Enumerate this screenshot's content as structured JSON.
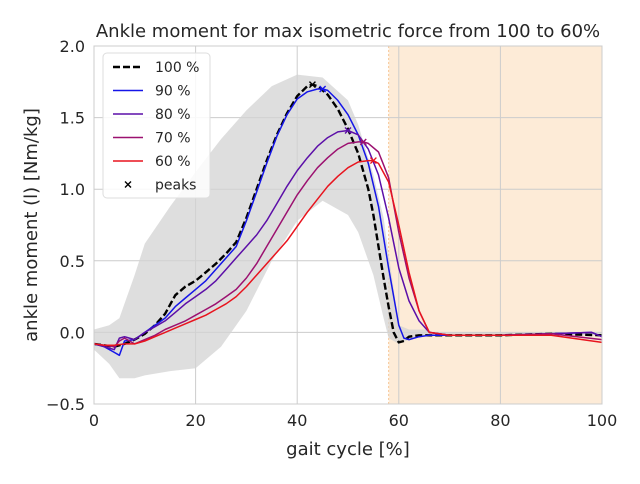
{
  "chart_data": {
    "type": "line",
    "title": "Ankle moment for max isometric force from 100 to 60%",
    "xlabel": "gait cycle [%]",
    "ylabel": "ankle moment (l) [Nm/kg]",
    "xlim": [
      0,
      100
    ],
    "ylim": [
      -0.5,
      2.0
    ],
    "xticks": [
      0,
      20,
      40,
      60,
      80,
      100
    ],
    "yticks": [
      -0.5,
      0.0,
      0.5,
      1.0,
      1.5,
      2.0
    ],
    "xtick_labels": [
      "0",
      "20",
      "40",
      "60",
      "80",
      "100"
    ],
    "ytick_labels": [
      "−0.5",
      "0.0",
      "0.5",
      "1.0",
      "1.5",
      "2.0"
    ],
    "grid": true,
    "legend_position": "top-left",
    "swing_region": {
      "x_start": 58,
      "x_end": 100,
      "color": "#fdebd7"
    },
    "reference_band": {
      "color": "#d3d3d3",
      "x": [
        0,
        3,
        5,
        8,
        10,
        15,
        20,
        25,
        30,
        35,
        40,
        45,
        50,
        52,
        55,
        57,
        58,
        60,
        62,
        65,
        67,
        70,
        80,
        90,
        100
      ],
      "upper": [
        0.02,
        0.05,
        0.1,
        0.4,
        0.62,
        0.88,
        1.12,
        1.35,
        1.55,
        1.72,
        1.8,
        1.78,
        1.62,
        1.45,
        1.1,
        0.8,
        0.55,
        0.05,
        0.02,
        0.02,
        0.0,
        0.0,
        0.0,
        0.0,
        0.0
      ],
      "lower": [
        -0.12,
        -0.22,
        -0.32,
        -0.32,
        -0.3,
        -0.27,
        -0.25,
        -0.1,
        0.15,
        0.5,
        0.78,
        0.92,
        0.82,
        0.7,
        0.4,
        0.1,
        -0.04,
        -0.08,
        -0.05,
        -0.02,
        -0.02,
        -0.02,
        -0.02,
        -0.02,
        -0.02
      ]
    },
    "series": [
      {
        "name": "100 %",
        "color": "#000000",
        "dashed": true,
        "x": [
          0,
          2,
          4,
          6,
          8,
          10,
          12,
          14,
          16,
          18,
          20,
          22,
          24,
          26,
          28,
          30,
          32,
          34,
          36,
          38,
          40,
          42,
          43,
          44,
          46,
          48,
          50,
          52,
          54,
          55,
          56,
          57,
          58,
          59,
          60,
          61,
          62,
          64,
          66,
          70,
          80,
          90,
          100
        ],
        "y": [
          -0.08,
          -0.09,
          -0.1,
          -0.08,
          -0.05,
          -0.01,
          0.05,
          0.13,
          0.26,
          0.32,
          0.36,
          0.42,
          0.48,
          0.55,
          0.63,
          0.8,
          1.0,
          1.2,
          1.38,
          1.53,
          1.65,
          1.72,
          1.73,
          1.72,
          1.66,
          1.56,
          1.42,
          1.25,
          1.0,
          0.82,
          0.6,
          0.38,
          0.18,
          0.0,
          -0.07,
          -0.06,
          -0.03,
          -0.02,
          -0.02,
          -0.02,
          -0.02,
          -0.01,
          -0.02
        ]
      },
      {
        "name": "90 %",
        "color": "#1515e8",
        "dashed": false,
        "x": [
          0,
          2,
          4,
          5,
          6,
          8,
          10,
          12,
          14,
          16,
          18,
          20,
          22,
          24,
          26,
          28,
          30,
          32,
          34,
          36,
          38,
          40,
          42,
          44,
          45,
          46,
          48,
          50,
          52,
          54,
          56,
          58,
          60,
          61,
          62,
          64,
          66,
          70,
          80,
          90,
          98,
          100
        ],
        "y": [
          -0.08,
          -0.1,
          -0.14,
          -0.16,
          -0.06,
          -0.05,
          0.0,
          0.05,
          0.1,
          0.18,
          0.24,
          0.3,
          0.36,
          0.44,
          0.52,
          0.6,
          0.78,
          0.98,
          1.18,
          1.37,
          1.52,
          1.63,
          1.68,
          1.7,
          1.7,
          1.69,
          1.62,
          1.52,
          1.38,
          1.18,
          0.88,
          0.45,
          0.05,
          -0.04,
          -0.05,
          -0.03,
          -0.02,
          -0.02,
          -0.02,
          -0.01,
          0.0,
          -0.03
        ]
      },
      {
        "name": "80 %",
        "color": "#5c0fa8",
        "dashed": false,
        "x": [
          0,
          2,
          4,
          5,
          6,
          8,
          10,
          12,
          14,
          16,
          18,
          20,
          22,
          24,
          26,
          28,
          30,
          32,
          34,
          36,
          38,
          40,
          42,
          44,
          46,
          48,
          50,
          52,
          54,
          56,
          58,
          60,
          62,
          64,
          66,
          70,
          80,
          90,
          98,
          100
        ],
        "y": [
          -0.08,
          -0.1,
          -0.12,
          -0.04,
          -0.03,
          -0.05,
          0.0,
          0.04,
          0.08,
          0.14,
          0.2,
          0.25,
          0.3,
          0.36,
          0.44,
          0.52,
          0.6,
          0.68,
          0.78,
          0.9,
          1.02,
          1.13,
          1.22,
          1.3,
          1.36,
          1.4,
          1.41,
          1.38,
          1.28,
          1.1,
          0.8,
          0.45,
          0.22,
          0.08,
          0.0,
          -0.02,
          -0.02,
          -0.01,
          0.0,
          -0.03
        ]
      },
      {
        "name": "70 %",
        "color": "#9c1170",
        "dashed": false,
        "x": [
          0,
          2,
          4,
          5,
          6,
          8,
          10,
          12,
          14,
          16,
          18,
          20,
          22,
          24,
          26,
          28,
          30,
          32,
          34,
          36,
          38,
          40,
          42,
          44,
          46,
          48,
          50,
          52,
          53,
          54,
          56,
          58,
          60,
          62,
          64,
          66,
          70,
          80,
          90,
          100
        ],
        "y": [
          -0.08,
          -0.09,
          -0.1,
          -0.06,
          -0.04,
          -0.08,
          -0.05,
          -0.02,
          0.02,
          0.05,
          0.08,
          0.12,
          0.16,
          0.2,
          0.25,
          0.3,
          0.38,
          0.48,
          0.6,
          0.72,
          0.84,
          0.96,
          1.06,
          1.15,
          1.22,
          1.28,
          1.32,
          1.33,
          1.33,
          1.32,
          1.26,
          1.08,
          0.7,
          0.38,
          0.15,
          0.0,
          -0.02,
          -0.02,
          -0.01,
          -0.05
        ]
      },
      {
        "name": "60 %",
        "color": "#e8141e",
        "dashed": false,
        "x": [
          0,
          2,
          4,
          6,
          8,
          10,
          12,
          14,
          16,
          18,
          20,
          22,
          24,
          26,
          28,
          30,
          32,
          34,
          36,
          38,
          40,
          42,
          44,
          46,
          48,
          50,
          52,
          54,
          55,
          56,
          58,
          60,
          62,
          64,
          66,
          70,
          80,
          90,
          100
        ],
        "y": [
          -0.08,
          -0.09,
          -0.09,
          -0.08,
          -0.08,
          -0.06,
          -0.03,
          0.0,
          0.03,
          0.06,
          0.09,
          0.12,
          0.16,
          0.2,
          0.25,
          0.32,
          0.4,
          0.48,
          0.56,
          0.64,
          0.74,
          0.84,
          0.93,
          1.02,
          1.09,
          1.15,
          1.19,
          1.2,
          1.2,
          1.18,
          1.05,
          0.75,
          0.42,
          0.15,
          0.0,
          -0.02,
          -0.02,
          -0.02,
          -0.07
        ]
      }
    ],
    "peaks": {
      "name": "peaks",
      "marker": "x",
      "points": [
        {
          "x": 43,
          "y": 1.73,
          "color": "#000000"
        },
        {
          "x": 45,
          "y": 1.7,
          "color": "#1515e8"
        },
        {
          "x": 50,
          "y": 1.41,
          "color": "#5c0fa8"
        },
        {
          "x": 53,
          "y": 1.33,
          "color": "#9c1170"
        },
        {
          "x": 55,
          "y": 1.2,
          "color": "#e8141e"
        }
      ]
    }
  }
}
